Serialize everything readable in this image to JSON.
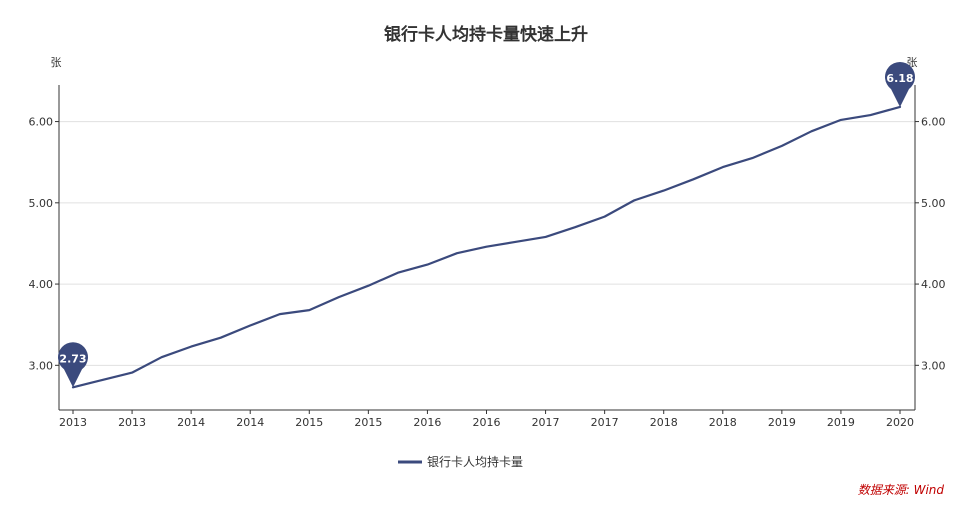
{
  "chart_data": {
    "type": "line",
    "title": "银行卡人均持卡量快速上升",
    "ylabel_left": "张",
    "ylabel_right": "张",
    "ylim": [
      2.45,
      6.45
    ],
    "yticks": [
      3.0,
      4.0,
      5.0,
      6.0
    ],
    "ytick_labels": [
      "3.00",
      "4.00",
      "5.00",
      "6.00"
    ],
    "x_tick_labels": [
      "2013",
      "2013",
      "2014",
      "2014",
      "2015",
      "2015",
      "2016",
      "2016",
      "2017",
      "2017",
      "2018",
      "2018",
      "2019",
      "2019",
      "2020"
    ],
    "series": [
      {
        "name": "银行卡人均持卡量",
        "color": "#3b4a7d",
        "values": [
          2.73,
          2.82,
          2.91,
          3.1,
          3.23,
          3.34,
          3.49,
          3.63,
          3.68,
          3.84,
          3.98,
          4.14,
          4.24,
          4.38,
          4.46,
          4.52,
          4.58,
          4.7,
          4.83,
          5.03,
          5.15,
          5.29,
          5.44,
          5.55,
          5.7,
          5.88,
          6.02,
          6.08,
          6.18
        ]
      }
    ],
    "markers": [
      {
        "index": 0,
        "label": "2.73"
      },
      {
        "index": 28,
        "label": "6.18"
      }
    ],
    "grid": true,
    "legend_position": "bottom-center",
    "source_text": "数据来源: Wind"
  }
}
